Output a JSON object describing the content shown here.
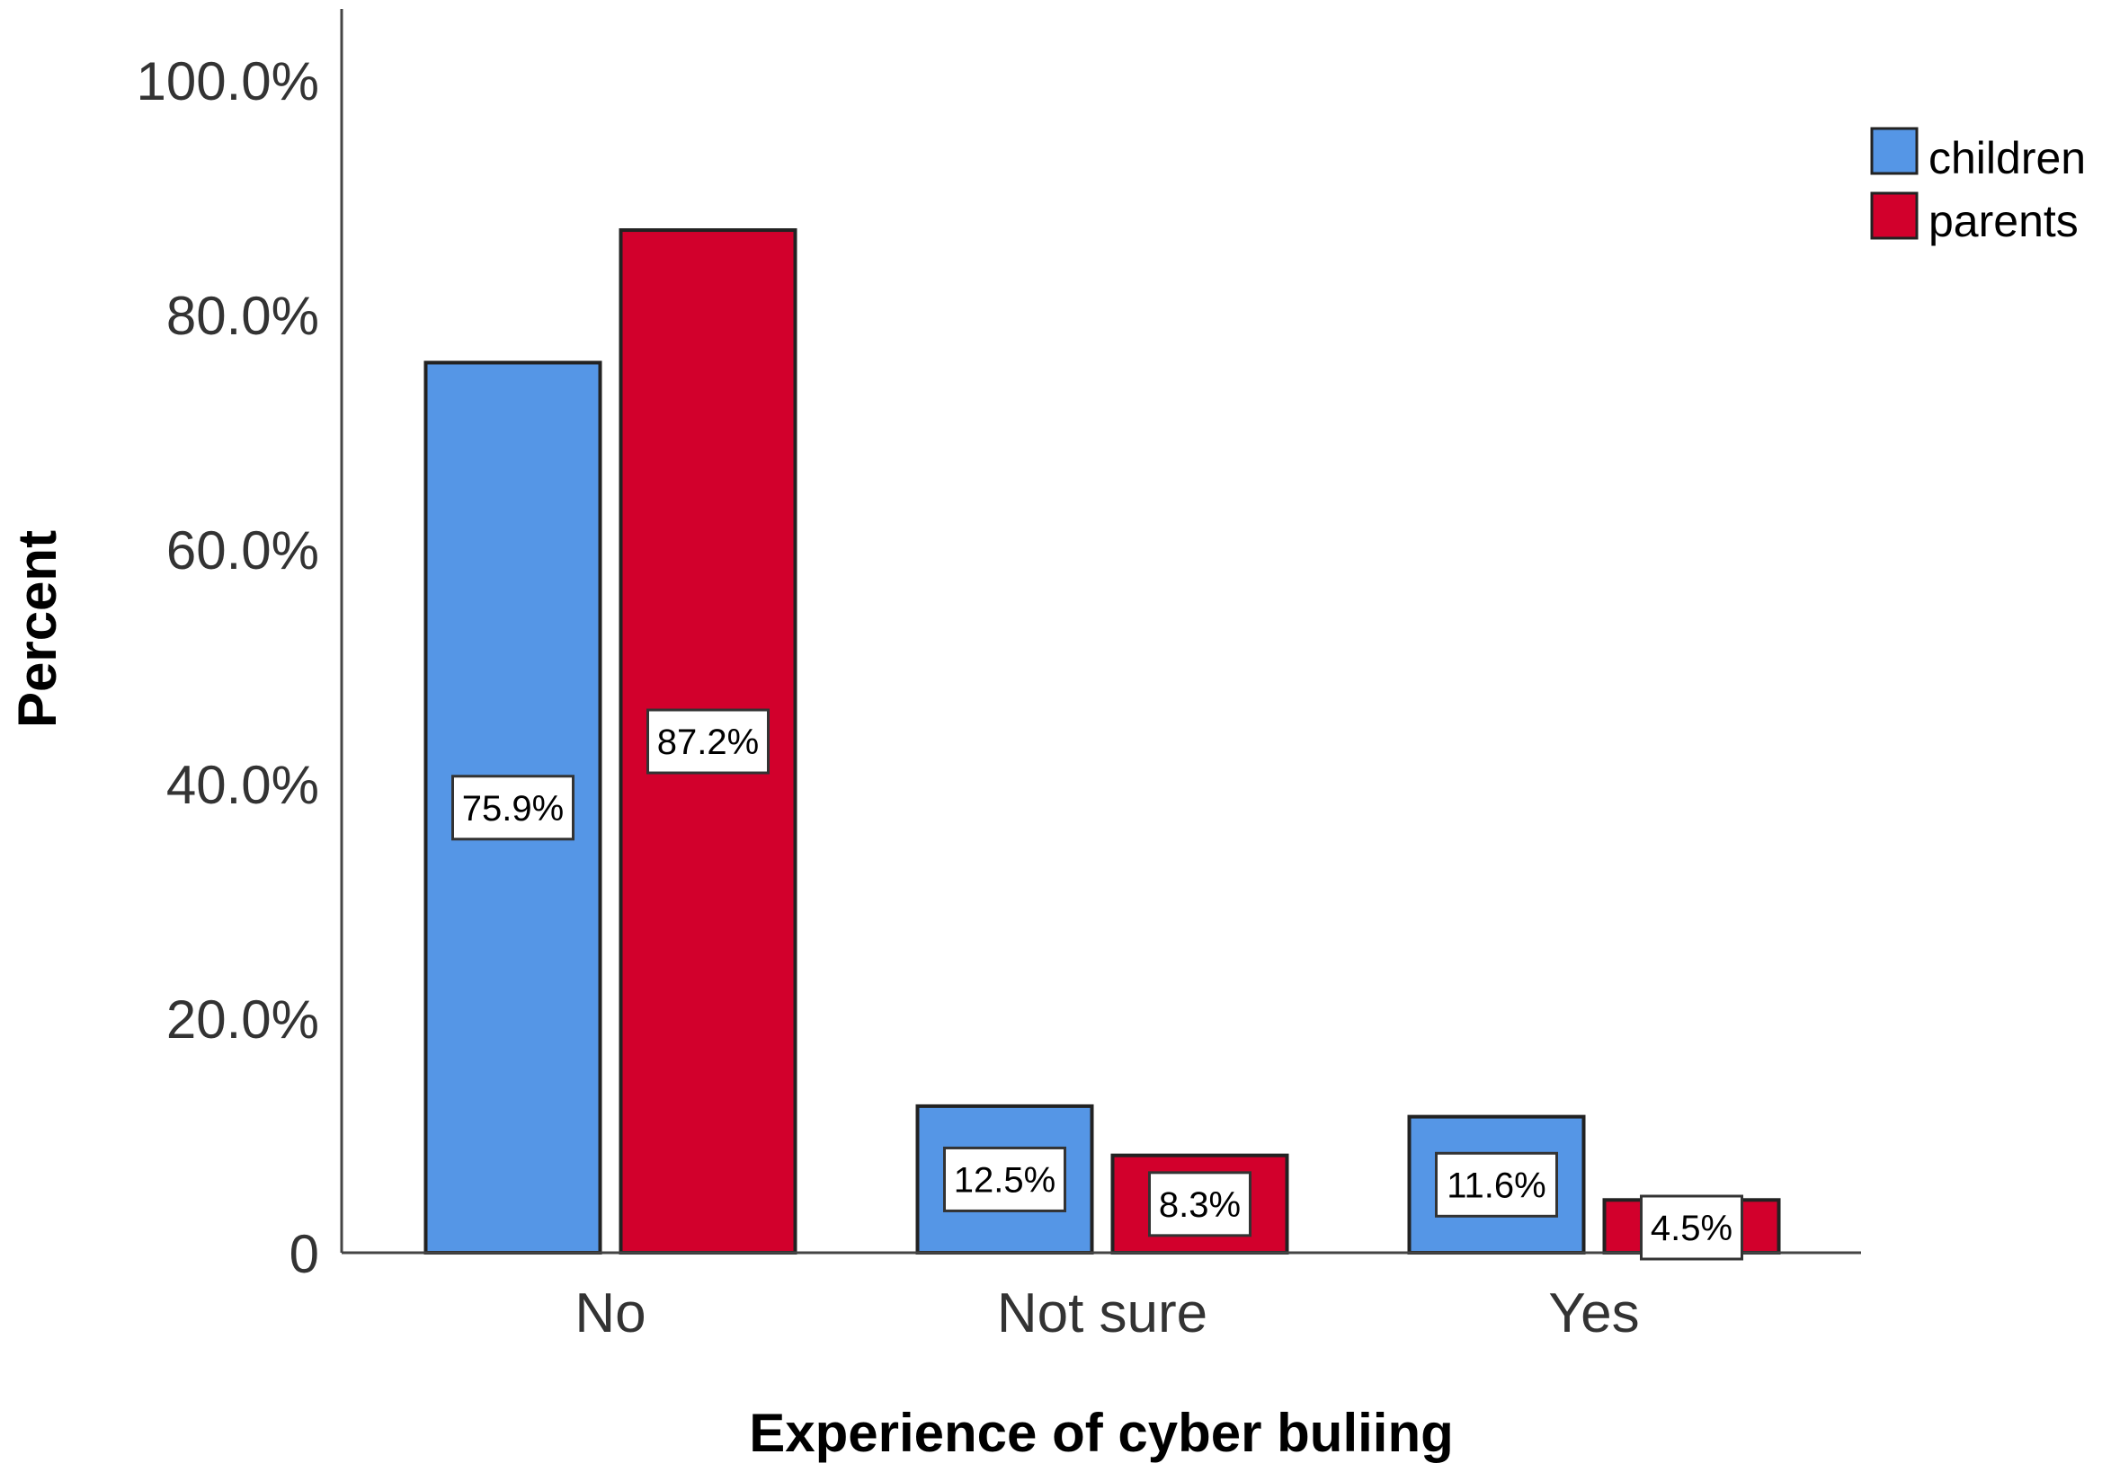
{
  "chart_data": {
    "type": "bar",
    "categories": [
      "No",
      "Not sure",
      "Yes"
    ],
    "series": [
      {
        "name": "children",
        "values": [
          75.9,
          12.5,
          11.6
        ],
        "color": "#5596e6",
        "labels": [
          "75.9%",
          "12.5%",
          "11.6%"
        ]
      },
      {
        "name": "parents",
        "values": [
          87.2,
          8.3,
          4.5
        ],
        "color": "#d2002c",
        "labels": [
          "87.2%",
          "8.3%",
          "4.5%"
        ]
      }
    ],
    "ylim": [
      0,
      100
    ],
    "yticks": [
      0,
      20,
      40,
      60,
      80,
      100
    ],
    "ytick_labels": [
      "0",
      "20.0%",
      "40.0%",
      "60.0%",
      "80.0%",
      "100.0%"
    ],
    "xlabel": "Experience of cyber buliing",
    "ylabel": "Percent",
    "grid": false,
    "legend": "top-right"
  }
}
